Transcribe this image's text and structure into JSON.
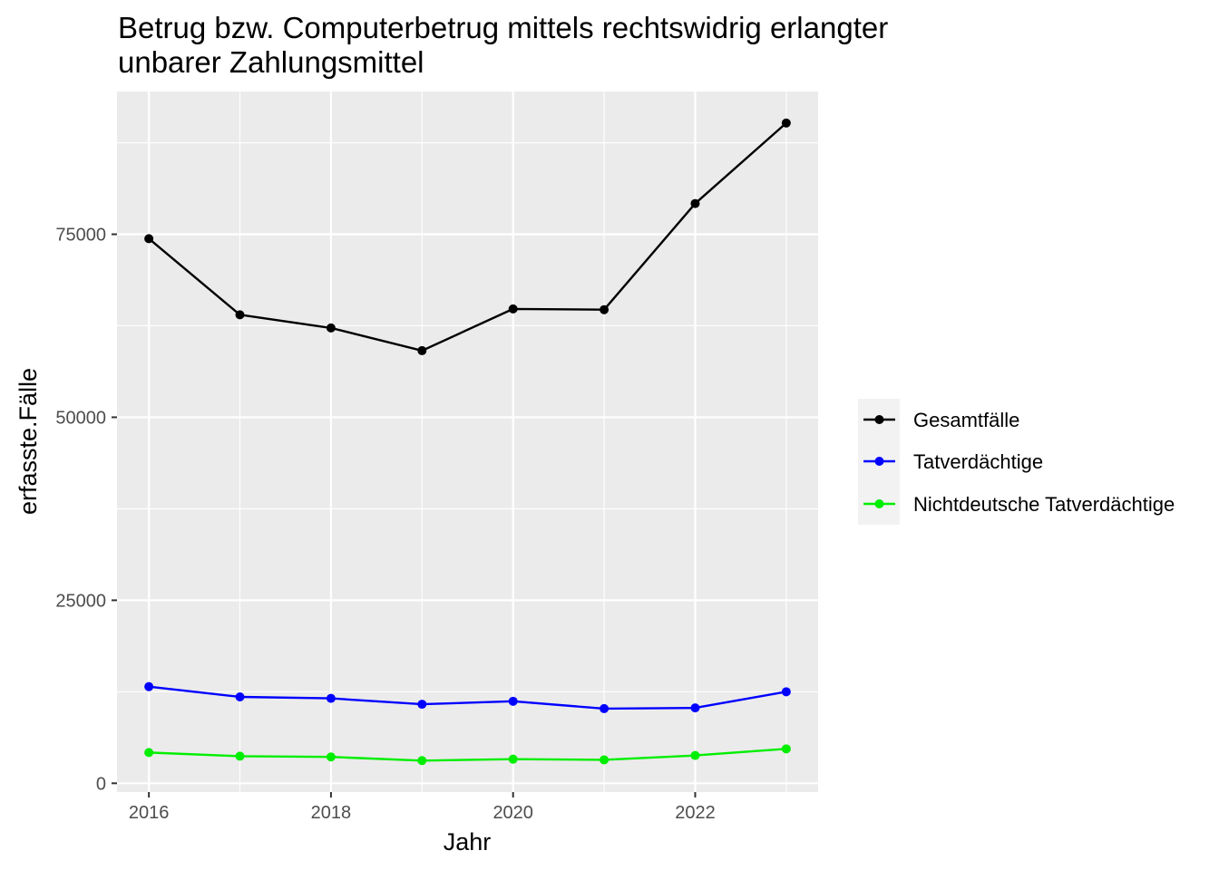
{
  "chart_data": {
    "type": "line",
    "title_lines": [
      "Betrug bzw. Computerbetrug mittels rechtswidrig erlangter",
      "unbarer Zahlungsmittel"
    ],
    "xlabel": "Jahr",
    "ylabel": "erfasste.Fälle",
    "x": [
      2016,
      2017,
      2018,
      2019,
      2020,
      2021,
      2022,
      2023
    ],
    "xticks": [
      2016,
      2018,
      2020,
      2022
    ],
    "yticks": [
      0,
      25000,
      50000,
      75000
    ],
    "xlim": [
      2015.65,
      2023.35
    ],
    "ylim": [
      -1200,
      94500
    ],
    "grid": true,
    "legend_position": "right",
    "series": [
      {
        "name": "Gesamtfälle",
        "color": "#000000",
        "values": [
          74400,
          64000,
          62200,
          59100,
          64800,
          64700,
          79200,
          90200
        ]
      },
      {
        "name": "Tatverdächtige",
        "color": "#0000ff",
        "values": [
          13200,
          11800,
          11600,
          10800,
          11200,
          10200,
          10300,
          12500
        ]
      },
      {
        "name": "Nichtdeutsche Tatverdächtige",
        "color": "#00ee00",
        "values": [
          4200,
          3700,
          3600,
          3100,
          3300,
          3200,
          3800,
          4700
        ]
      }
    ]
  }
}
